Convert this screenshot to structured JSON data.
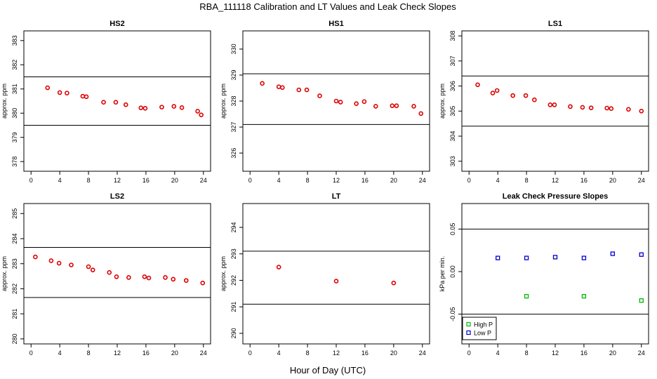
{
  "title": "RBA_111118  Calibration and LT Values and Leak Check Slopes",
  "xlabel": "Hour of Day (UTC)",
  "colors": {
    "points": "#dd0000",
    "high_p": "#00bb00",
    "low_p": "#0000cc",
    "line": "#000000",
    "frame": "#000000"
  },
  "chart_data": [
    {
      "type": "scatter",
      "title": "HS2",
      "ylabel": "approx. ppm",
      "xlim": [
        -1,
        25
      ],
      "xticks": [
        0,
        4,
        8,
        12,
        16,
        20,
        24
      ],
      "ylim": [
        377.6,
        383.4
      ],
      "yticks": [
        378,
        379,
        380,
        381,
        382,
        383
      ],
      "hlines": [
        381.5,
        379.5
      ],
      "series": [
        {
          "color_key": "points",
          "x": [
            2.3,
            4.0,
            5.0,
            7.2,
            7.7,
            10.1,
            11.8,
            13.2,
            15.3,
            15.9,
            18.2,
            19.9,
            21.0,
            23.2,
            23.7
          ],
          "y": [
            381.05,
            380.85,
            380.83,
            380.7,
            380.68,
            380.45,
            380.45,
            380.35,
            380.22,
            380.2,
            380.25,
            380.28,
            380.23,
            380.08,
            379.93
          ]
        }
      ]
    },
    {
      "type": "scatter",
      "title": "HS1",
      "ylabel": "approx. ppm",
      "xlim": [
        -1,
        25
      ],
      "xticks": [
        0,
        4,
        8,
        12,
        16,
        20,
        24
      ],
      "ylim": [
        325.3,
        330.7
      ],
      "yticks": [
        326,
        327,
        328,
        329,
        330
      ],
      "hlines": [
        329.05,
        327.1
      ],
      "series": [
        {
          "color_key": "points",
          "x": [
            1.7,
            4.0,
            4.5,
            6.8,
            7.9,
            9.7,
            12.0,
            12.6,
            14.8,
            15.9,
            17.5,
            19.8,
            20.4,
            22.8,
            23.8
          ],
          "y": [
            328.68,
            328.55,
            328.52,
            328.43,
            328.43,
            328.2,
            328.0,
            327.96,
            327.9,
            327.98,
            327.8,
            327.82,
            327.82,
            327.8,
            327.52
          ]
        }
      ]
    },
    {
      "type": "scatter",
      "title": "LS1",
      "ylabel": "approx. ppm",
      "xlim": [
        -1,
        25
      ],
      "xticks": [
        0,
        4,
        8,
        12,
        16,
        20,
        24
      ],
      "ylim": [
        302.6,
        308.2
      ],
      "yticks": [
        303,
        304,
        305,
        306,
        307,
        308
      ],
      "hlines": [
        306.4,
        304.4
      ],
      "series": [
        {
          "color_key": "points",
          "x": [
            1.2,
            3.3,
            3.9,
            6.1,
            7.9,
            9.1,
            11.3,
            11.9,
            14.1,
            15.8,
            17.0,
            19.2,
            19.8,
            22.2,
            24.0
          ],
          "y": [
            306.05,
            305.72,
            305.82,
            305.62,
            305.62,
            305.45,
            305.25,
            305.25,
            305.18,
            305.15,
            305.13,
            305.12,
            305.1,
            305.07,
            305.0
          ]
        }
      ]
    },
    {
      "type": "scatter",
      "title": "LS2",
      "ylabel": "approx. ppm",
      "xlim": [
        -1,
        25
      ],
      "xticks": [
        0,
        4,
        8,
        12,
        16,
        20,
        24
      ],
      "ylim": [
        279.8,
        285.4
      ],
      "yticks": [
        280,
        281,
        282,
        283,
        284,
        285
      ],
      "hlines": [
        283.65,
        281.65
      ],
      "series": [
        {
          "color_key": "points",
          "x": [
            0.6,
            2.8,
            3.9,
            5.6,
            8.0,
            8.6,
            10.9,
            11.9,
            13.6,
            15.8,
            16.4,
            18.7,
            19.8,
            21.6,
            23.9
          ],
          "y": [
            283.27,
            283.12,
            283.02,
            282.95,
            282.88,
            282.75,
            282.65,
            282.48,
            282.45,
            282.48,
            282.43,
            282.45,
            282.38,
            282.33,
            282.23
          ]
        }
      ]
    },
    {
      "type": "scatter",
      "title": "LT",
      "ylabel": "approx. ppm",
      "xlim": [
        -1,
        25
      ],
      "xticks": [
        0,
        4,
        8,
        12,
        16,
        20,
        24
      ],
      "ylim": [
        289.6,
        294.9
      ],
      "yticks": [
        290,
        291,
        292,
        293,
        294
      ],
      "hlines": [
        293.1,
        291.1
      ],
      "series": [
        {
          "color_key": "points",
          "x": [
            4.0,
            12.0,
            20.0
          ],
          "y": [
            292.5,
            291.97,
            291.9
          ]
        }
      ]
    },
    {
      "type": "scatter",
      "title": "Leak Check Pressure Slopes",
      "ylabel": "kPa per min.",
      "xlim": [
        -1,
        25
      ],
      "xticks": [
        0,
        4,
        8,
        12,
        16,
        20,
        24
      ],
      "ylim": [
        -0.085,
        0.08
      ],
      "yticks": [
        -0.05,
        0.0,
        0.05
      ],
      "ytick_labels": [
        "-0.05",
        "0.00",
        "0.05"
      ],
      "hlines": [
        0.05,
        -0.05
      ],
      "legend": {
        "position": "bottom-left",
        "entries": [
          "High P",
          "Low P"
        ]
      },
      "series": [
        {
          "name": "High P",
          "color_key": "high_p",
          "x": [
            8,
            16,
            24
          ],
          "y": [
            -0.029,
            -0.029,
            -0.034
          ]
        },
        {
          "name": "Low P",
          "color_key": "low_p",
          "x": [
            4,
            8,
            12,
            16,
            20,
            24
          ],
          "y": [
            0.016,
            0.016,
            0.017,
            0.016,
            0.021,
            0.02
          ]
        }
      ]
    }
  ]
}
